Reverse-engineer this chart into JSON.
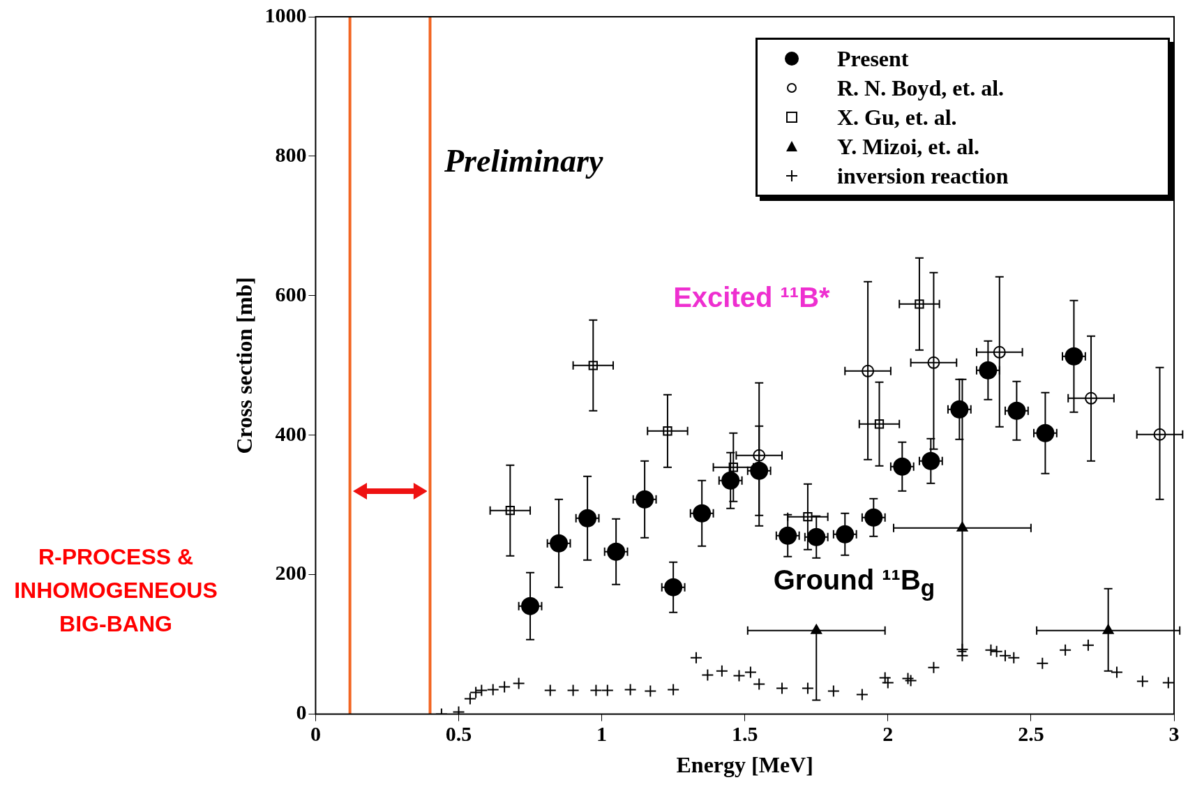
{
  "chart_data": {
    "type": "scatter",
    "xlabel": "Energy [MeV]",
    "ylabel": "Cross section [mb]",
    "xlim": [
      0,
      3
    ],
    "xticks": [
      0,
      0.5,
      1,
      1.5,
      2,
      2.5,
      3
    ],
    "ylim": [
      0,
      1000
    ],
    "yticks": [
      0,
      200,
      400,
      600,
      800,
      1000
    ],
    "grid": false,
    "legend": "top right",
    "annotations": [
      "Preliminary",
      "Excited ¹¹B*",
      "Ground ¹¹B$_{g}$",
      "R-PROCESS & INHOMOGENEOUS BIG-BANG"
    ],
    "ref_lines": [
      {
        "axis": "x",
        "value": 0.12,
        "color": "#f26522"
      },
      {
        "axis": "x",
        "value": 0.4,
        "color": "#f26522"
      }
    ],
    "series": [
      {
        "name": "Present",
        "marker": "circle",
        "color": "#000000",
        "x": [
          0.75,
          0.85,
          0.95,
          1.05,
          1.15,
          1.25,
          1.35,
          1.45,
          1.55,
          1.65,
          1.75,
          1.85,
          1.95,
          2.05,
          2.15,
          2.25,
          2.35,
          2.45,
          2.55,
          2.65
        ],
        "values": [
          155,
          245,
          281,
          233,
          308,
          182,
          288,
          335,
          349,
          256,
          254,
          258,
          282,
          355,
          363,
          437,
          493,
          435,
          403,
          513
        ],
        "errors": [
          48,
          63,
          60,
          47,
          55,
          36,
          47,
          40,
          64,
          30,
          30,
          30,
          27,
          35,
          32,
          43,
          42,
          42,
          58,
          80
        ],
        "xerrors": [
          0.04,
          0.04,
          0.04,
          0.04,
          0.04,
          0.04,
          0.04,
          0.04,
          0.04,
          0.04,
          0.04,
          0.04,
          0.04,
          0.04,
          0.04,
          0.04,
          0.04,
          0.04,
          0.04,
          0.04
        ]
      },
      {
        "name": "R. N. Boyd, et. al.",
        "marker": "circle",
        "color": "#000000",
        "x": [
          1.55,
          1.93,
          2.16,
          2.39,
          2.71,
          2.95
        ],
        "values": [
          371,
          492,
          504,
          519,
          453,
          401
        ],
        "errors": [
          [
            270,
            475
          ],
          [
            365,
            620
          ],
          [
            380,
            633
          ],
          [
            412,
            627
          ],
          [
            363,
            542
          ],
          [
            308,
            497
          ]
        ],
        "xerrors": [
          0.08,
          0.08,
          0.08,
          0.08,
          0.08,
          0.08
        ]
      },
      {
        "name": "X. Gu, et. al.",
        "marker": "square",
        "color": "#000000",
        "x": [
          0.68,
          0.97,
          1.23,
          1.46,
          1.72,
          1.97,
          2.11
        ],
        "values": [
          292,
          500,
          406,
          354,
          283,
          416,
          588
        ],
        "errors": [
          65,
          65,
          52,
          49,
          47,
          60,
          66
        ],
        "xerrors": [
          0.07,
          0.07,
          0.07,
          0.07,
          0.07,
          0.07,
          0.07
        ]
      },
      {
        "name": "Y. Mizoi, et. al.",
        "marker": "triangle",
        "color": "#000000",
        "x": [
          1.75,
          2.26,
          2.77
        ],
        "values": [
          120,
          267,
          120
        ],
        "errors": [
          [
            20,
            120
          ],
          [
            90,
            480
          ],
          [
            62,
            180
          ]
        ],
        "xerrors": [
          0.24,
          0.24,
          0.25
        ]
      },
      {
        "name": "inversion reaction",
        "marker": "cross",
        "color": "#000000",
        "x": [
          0.44,
          0.5,
          0.54,
          0.56,
          0.58,
          0.62,
          0.66,
          0.71,
          0.82,
          0.9,
          0.98,
          1.02,
          1.1,
          1.17,
          1.25,
          1.33,
          1.37,
          1.42,
          1.48,
          1.52,
          1.55,
          1.63,
          1.72,
          1.81,
          1.91,
          1.99,
          2.0,
          2.07,
          2.08,
          2.16,
          2.26,
          2.26,
          2.36,
          2.38,
          2.41,
          2.44,
          2.54,
          2.62,
          2.7,
          2.8,
          2.89,
          2.98
        ],
        "values": [
          0,
          3,
          22,
          31,
          34,
          35,
          39,
          44,
          34,
          34,
          34,
          34,
          35,
          33,
          35,
          81,
          56,
          62,
          55,
          60,
          43,
          37,
          37,
          33,
          28,
          52,
          45,
          51,
          48,
          67,
          93,
          84,
          92,
          90,
          84,
          81,
          73,
          92,
          99,
          60,
          47,
          45
        ]
      }
    ]
  }
}
